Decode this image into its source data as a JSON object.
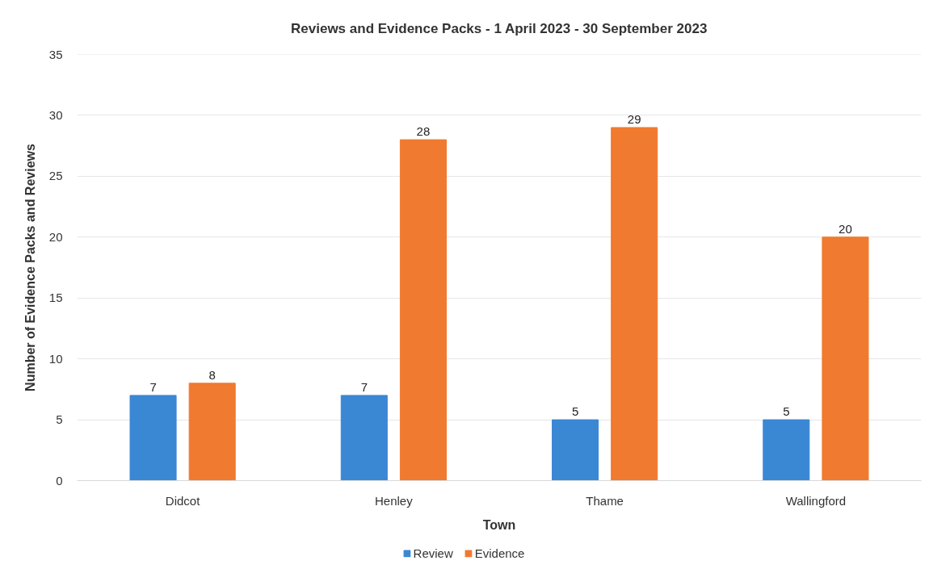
{
  "chart_data": {
    "type": "bar",
    "title": "Reviews and Evidence Packs - 1 April 2023 - 30 September 2023",
    "xlabel": "Town",
    "ylabel": "Number of Evidence Packs and Reviews",
    "categories": [
      "Didcot",
      "Henley",
      "Thame",
      "Wallingford"
    ],
    "series": [
      {
        "name": "Review",
        "color": "#3a87d4",
        "values": [
          7,
          7,
          5,
          5
        ]
      },
      {
        "name": "Evidence",
        "color": "#f07a30",
        "values": [
          8,
          28,
          29,
          20
        ]
      }
    ],
    "ylim": [
      0,
      35
    ],
    "yticks": [
      0,
      5,
      10,
      15,
      20,
      25,
      30,
      35
    ],
    "grid": "y",
    "legend": "bottom",
    "data_labels": true
  }
}
